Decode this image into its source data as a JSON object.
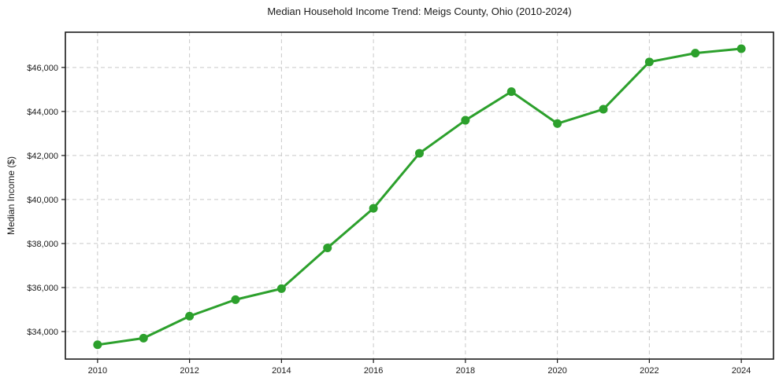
{
  "chart_data": {
    "type": "line",
    "title": "Median Household Income Trend: Meigs County, Ohio (2010-2024)",
    "xlabel": "",
    "ylabel": "Median Income ($)",
    "x": [
      2010,
      2011,
      2012,
      2013,
      2014,
      2015,
      2016,
      2017,
      2018,
      2019,
      2020,
      2021,
      2022,
      2023,
      2024
    ],
    "values": [
      33400,
      33700,
      34700,
      35450,
      35950,
      37800,
      39600,
      42100,
      43600,
      44900,
      43450,
      44100,
      46250,
      46650,
      46850
    ],
    "xlim": [
      2009.3,
      2024.7
    ],
    "ylim": [
      32750,
      47600
    ],
    "grid": true,
    "grid_style": "dashed",
    "legend_position": "none",
    "line_color": "#2ca02c",
    "marker": "circle",
    "x_ticks": [
      {
        "value": 2010,
        "label": "2010"
      },
      {
        "value": 2012,
        "label": "2012"
      },
      {
        "value": 2014,
        "label": "2014"
      },
      {
        "value": 2016,
        "label": "2016"
      },
      {
        "value": 2018,
        "label": "2018"
      },
      {
        "value": 2020,
        "label": "2020"
      },
      {
        "value": 2022,
        "label": "2022"
      },
      {
        "value": 2024,
        "label": "2024"
      }
    ],
    "y_ticks": [
      {
        "value": 34000,
        "label": "$34,000"
      },
      {
        "value": 36000,
        "label": "$36,000"
      },
      {
        "value": 38000,
        "label": "$38,000"
      },
      {
        "value": 40000,
        "label": "$40,000"
      },
      {
        "value": 42000,
        "label": "$42,000"
      },
      {
        "value": 44000,
        "label": "$44,000"
      },
      {
        "value": 46000,
        "label": "$46,000"
      }
    ],
    "colors": {
      "gridline": "#c9c9c9",
      "axis": "#1a1a1a",
      "text": "#1a1a1a",
      "background": "#ffffff"
    }
  }
}
